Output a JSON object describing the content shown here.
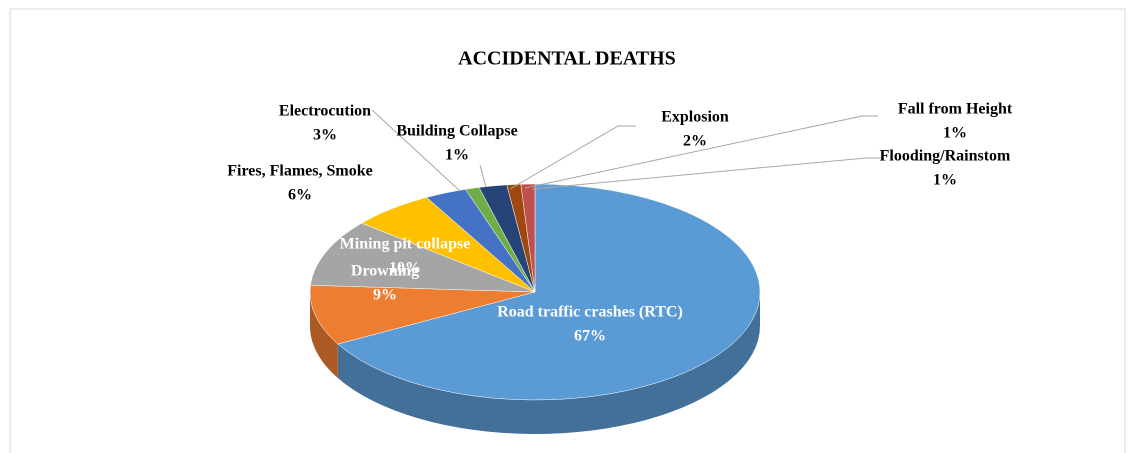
{
  "chart_data": {
    "type": "pie",
    "title": "ACCIDENTAL DEATHS",
    "categories": [
      "Road traffic crashes (RTC)",
      "Drowning",
      "Mining pit collapse",
      "Fires, Flames, Smoke",
      "Electrocution",
      "Building Collapse",
      "Explosion",
      "Fall from Height",
      "Flooding/Rainstom"
    ],
    "values": [
      67,
      9,
      10,
      6,
      3,
      1,
      2,
      1,
      1
    ],
    "value_labels": [
      "67%",
      "9%",
      "10%",
      "6%",
      "3%",
      "1%",
      "2%",
      "1%",
      "1%"
    ],
    "colors": [
      "#5b9bd5",
      "#ed7d31",
      "#a5a5a5",
      "#ffc000",
      "#4472c4",
      "#70ad47",
      "#264478",
      "#9e480e",
      "#c0504d"
    ]
  }
}
